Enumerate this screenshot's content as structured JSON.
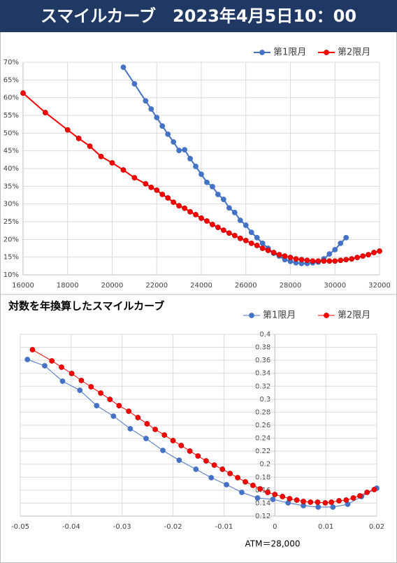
{
  "title": "スマイルカーブ　2023年4月5日10：00",
  "chart_data": [
    {
      "type": "line",
      "grid": true,
      "legend": "top-right",
      "xlim": [
        16000,
        32000
      ],
      "xticks": [
        16000,
        18000,
        20000,
        22000,
        24000,
        26000,
        28000,
        30000,
        32000
      ],
      "ylim": [
        10,
        70
      ],
      "yticks": [
        {
          "value": 10,
          "label": "10%"
        },
        {
          "value": 15,
          "label": "15%"
        },
        {
          "value": 20,
          "label": "20%"
        },
        {
          "value": 25,
          "label": "25%"
        },
        {
          "value": 30,
          "label": "30%"
        },
        {
          "value": 35,
          "label": "35%"
        },
        {
          "value": 40,
          "label": "40%"
        },
        {
          "value": 45,
          "label": "45%"
        },
        {
          "value": 50,
          "label": "50%"
        },
        {
          "value": 55,
          "label": "55%"
        },
        {
          "value": 60,
          "label": "60%"
        },
        {
          "value": 65,
          "label": "65%"
        },
        {
          "value": 70,
          "label": "70%"
        }
      ],
      "series": [
        {
          "name": "第1限月",
          "color": "#4472c4",
          "x": [
            20500,
            21000,
            21500,
            21750,
            22000,
            22250,
            22500,
            22750,
            23000,
            23250,
            23500,
            23750,
            24000,
            24250,
            24500,
            24750,
            25000,
            25250,
            25500,
            25750,
            26000,
            26250,
            26500,
            26750,
            27000,
            27250,
            27500,
            27750,
            28000,
            28250,
            28500,
            28750,
            29000,
            29250,
            29500,
            29750,
            30000,
            30250,
            30500
          ],
          "values": [
            68.6,
            63.9,
            59.1,
            56.8,
            54.4,
            52.0,
            49.7,
            47.5,
            45.1,
            45.3,
            42.8,
            40.6,
            38.4,
            36.1,
            34.9,
            32.7,
            31.3,
            28.9,
            27.6,
            25.4,
            24.0,
            22.0,
            20.5,
            18.9,
            17.5,
            16.1,
            15.3,
            14.3,
            13.8,
            13.4,
            13.2,
            13.2,
            13.4,
            13.6,
            14.5,
            15.9,
            17.1,
            18.9,
            20.5
          ]
        },
        {
          "name": "第2限月",
          "color": "#ff0000",
          "x": [
            16000,
            17000,
            18000,
            18500,
            19000,
            19500,
            20000,
            20500,
            21000,
            21500,
            21750,
            22000,
            22250,
            22500,
            22750,
            23000,
            23250,
            23500,
            23750,
            24000,
            24250,
            24500,
            24750,
            25000,
            25250,
            25500,
            25750,
            26000,
            26250,
            26500,
            26750,
            27000,
            27250,
            27500,
            27750,
            28000,
            28250,
            28500,
            28750,
            29000,
            29250,
            29500,
            29750,
            30000,
            30250,
            30500,
            30750,
            31000,
            31250,
            31500,
            31750,
            32000
          ],
          "values": [
            61.3,
            55.8,
            50.9,
            48.5,
            46.3,
            43.4,
            41.6,
            39.6,
            37.4,
            35.7,
            34.7,
            33.9,
            32.7,
            31.7,
            30.5,
            29.5,
            28.8,
            27.8,
            27.0,
            26.0,
            25.2,
            24.2,
            23.4,
            22.6,
            21.8,
            21.1,
            20.3,
            19.7,
            18.9,
            18.3,
            17.5,
            16.9,
            16.3,
            15.7,
            15.3,
            14.9,
            14.5,
            14.3,
            14.1,
            13.9,
            13.9,
            13.9,
            13.9,
            13.9,
            14.1,
            14.3,
            14.5,
            14.9,
            15.3,
            15.7,
            16.3,
            16.7
          ]
        }
      ]
    },
    {
      "type": "line",
      "title": "対数を年換算したスマイルカーブ",
      "annotation": "ATM＝28,000",
      "grid": true,
      "legend": "top-right",
      "xlim": [
        -0.05,
        0.02
      ],
      "xticks": [
        -0.05,
        -0.04,
        -0.03,
        -0.02,
        -0.01,
        0,
        0.01,
        0.02
      ],
      "ylim": [
        0.12,
        0.4
      ],
      "yticks": [
        0.12,
        0.14,
        0.16,
        0.18,
        0.2,
        0.22,
        0.24,
        0.26,
        0.28,
        0.3,
        0.32,
        0.34,
        0.36,
        0.38,
        0.4
      ],
      "series": [
        {
          "name": "第1限月",
          "color": "#4472c4",
          "x": [
            -0.0486,
            -0.0452,
            -0.0417,
            -0.0383,
            -0.035,
            -0.0317,
            -0.0284,
            -0.0253,
            -0.022,
            -0.0188,
            -0.0155,
            -0.0125,
            -0.0095,
            -0.0065,
            -0.0034,
            -0.0004,
            0.0026,
            0.0056,
            0.0085,
            0.0114,
            0.0143,
            0.017,
            0.02
          ],
          "values": [
            0.3612,
            0.3515,
            0.3278,
            0.3138,
            0.2901,
            0.274,
            0.2546,
            0.2395,
            0.2212,
            0.2061,
            0.1922,
            0.1792,
            0.1685,
            0.1566,
            0.148,
            0.1458,
            0.1405,
            0.1362,
            0.134,
            0.134,
            0.1383,
            0.1502,
            0.1631
          ]
        },
        {
          "name": "第2限月",
          "color": "#ff0000",
          "x": [
            -0.0476,
            -0.0438,
            -0.0419,
            -0.0399,
            -0.038,
            -0.0361,
            -0.0342,
            -0.0324,
            -0.0306,
            -0.0287,
            -0.0269,
            -0.0251,
            -0.0235,
            -0.0217,
            -0.02,
            -0.0184,
            -0.0167,
            -0.0151,
            -0.0135,
            -0.0119,
            -0.0103,
            -0.0088,
            -0.0073,
            -0.0058,
            -0.0043,
            -0.0029,
            -0.0014,
            0,
            0.0015,
            0.0029,
            0.0043,
            0.0056,
            0.007,
            0.0084,
            0.0099,
            0.0111,
            0.0126,
            0.014,
            0.0154,
            0.0167,
            0.0181,
            0.0195
          ],
          "values": [
            0.3763,
            0.3591,
            0.3494,
            0.3397,
            0.3289,
            0.3192,
            0.3095,
            0.2998,
            0.2901,
            0.2815,
            0.2718,
            0.2622,
            0.2535,
            0.2449,
            0.2363,
            0.2288,
            0.2202,
            0.2126,
            0.2051,
            0.1986,
            0.1922,
            0.1857,
            0.1792,
            0.1728,
            0.1674,
            0.162,
            0.1566,
            0.1534,
            0.1502,
            0.1469,
            0.1448,
            0.1426,
            0.1415,
            0.1415,
            0.1405,
            0.1415,
            0.1437,
            0.1448,
            0.148,
            0.1512,
            0.1566,
            0.1609
          ]
        }
      ]
    }
  ]
}
